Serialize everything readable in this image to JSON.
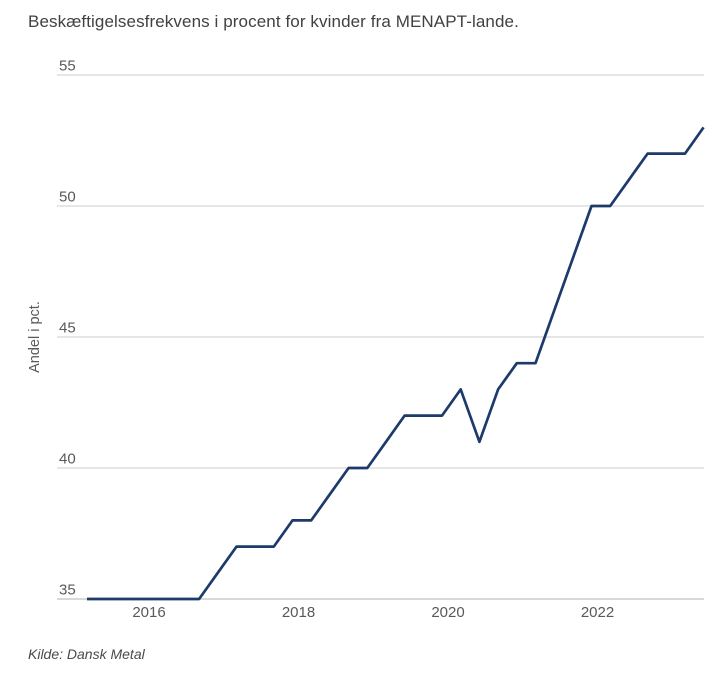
{
  "page": {
    "background": "#ffffff"
  },
  "header": {
    "title": "Beskæftigelsesfrekvens i procent for kvinder fra MENAPT-lande."
  },
  "footer": {
    "source": "Kilde: Dansk Metal"
  },
  "colors": {
    "line": "#1c3a6a",
    "grid": "#d8d8d8",
    "axis_text": "#595959",
    "title_text": "#414141",
    "source_text": "#4a4a4a"
  },
  "chart_data": {
    "type": "line",
    "title": "Beskæftigelsesfrekvens i procent for kvinder fra MENAPT-lande.",
    "xlabel": "",
    "ylabel": "Andel i pct.",
    "ylim": [
      35,
      55
    ],
    "yticks": [
      35,
      40,
      45,
      50,
      55
    ],
    "xticks": [
      2016,
      2018,
      2020,
      2022
    ],
    "grid": "horizontal",
    "legend": "none",
    "source": "Kilde: Dansk Metal",
    "series": [
      {
        "name": "Beskæftigelsesfrekvens for kvinder fra MENAPT-lande",
        "x": [
          2015.17,
          2015.42,
          2015.67,
          2015.92,
          2016.17,
          2016.42,
          2016.67,
          2016.92,
          2017.17,
          2017.42,
          2017.67,
          2017.92,
          2018.17,
          2018.42,
          2018.67,
          2018.92,
          2019.17,
          2019.42,
          2019.67,
          2019.92,
          2020.17,
          2020.42,
          2020.67,
          2020.92,
          2021.17,
          2021.42,
          2021.67,
          2021.92,
          2022.17,
          2022.42,
          2022.67,
          2022.92,
          2023.17,
          2023.42
        ],
        "y": [
          35,
          35,
          35,
          35,
          35,
          35,
          35,
          36,
          37,
          37,
          37,
          38,
          38,
          39,
          40,
          40,
          41,
          42,
          42,
          42,
          43,
          41,
          43,
          44,
          44,
          46,
          48,
          50,
          50,
          51,
          52,
          52,
          52,
          53
        ]
      }
    ]
  }
}
